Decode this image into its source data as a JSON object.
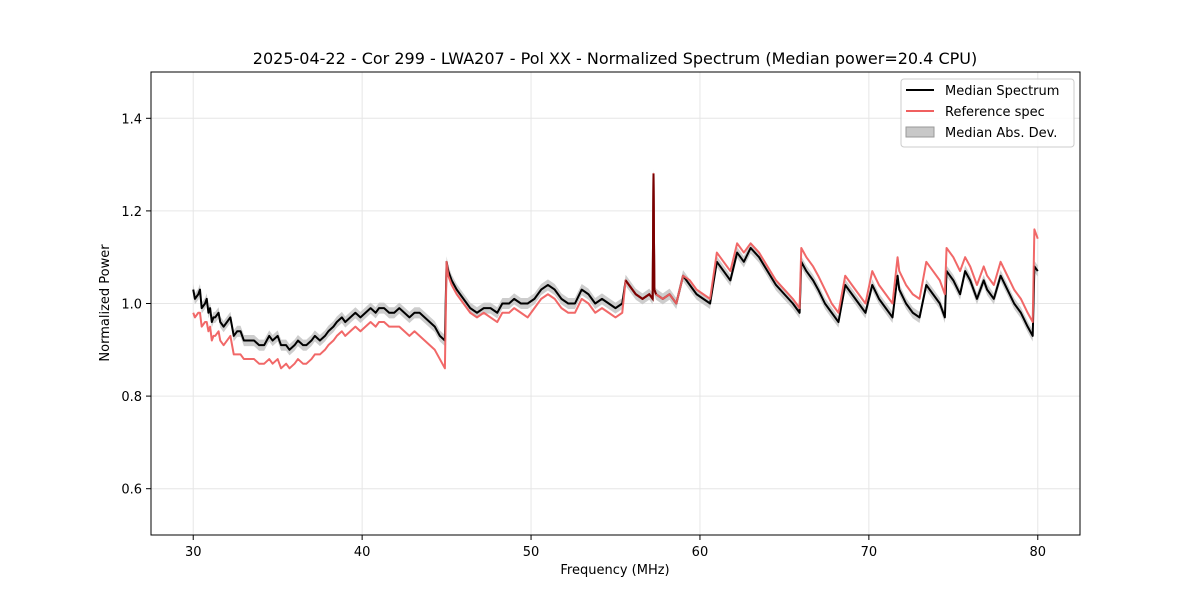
{
  "chart_data": {
    "type": "line",
    "title": "2025-04-22 - Cor 299 - LWA207 - Pol XX - Normalized Spectrum (Median power=20.4 CPU)",
    "xlabel": "Frequency (MHz)",
    "ylabel": "Normalized Power",
    "xlim": [
      27.5,
      82.5
    ],
    "ylim": [
      0.5,
      1.5
    ],
    "xticks": [
      30,
      40,
      50,
      60,
      70,
      80
    ],
    "yticks": [
      0.6,
      0.8,
      1.0,
      1.2,
      1.4
    ],
    "xtick_labels": [
      "30",
      "40",
      "50",
      "60",
      "70",
      "80"
    ],
    "ytick_labels": [
      "0.6",
      "0.8",
      "1.0",
      "1.2",
      "1.4"
    ],
    "grid": true,
    "legend_position": "top-right",
    "colors": {
      "median": "#000000",
      "reference": "#f06060",
      "mad": "#c8c8c8",
      "overlap": "#7a0000"
    },
    "legend": [
      "Median Spectrum",
      "Reference spec",
      "Median Abs. Dev."
    ],
    "series": [
      {
        "name": "Median Spectrum",
        "x": [
          30.0,
          30.1,
          30.3,
          30.4,
          30.5,
          30.7,
          30.8,
          30.9,
          31.0,
          31.1,
          31.2,
          31.3,
          31.5,
          31.6,
          31.8,
          32.0,
          32.2,
          32.4,
          32.6,
          32.8,
          33.0,
          33.3,
          33.6,
          33.9,
          34.2,
          34.5,
          34.7,
          35.0,
          35.2,
          35.5,
          35.7,
          36.0,
          36.2,
          36.5,
          36.7,
          37.0,
          37.2,
          37.5,
          37.8,
          38.0,
          38.3,
          38.5,
          38.8,
          39.0,
          39.3,
          39.6,
          39.9,
          40.2,
          40.5,
          40.8,
          41.0,
          41.3,
          41.6,
          41.9,
          42.2,
          42.5,
          42.8,
          43.1,
          43.4,
          43.7,
          44.0,
          44.3,
          44.6,
          44.9,
          45.0,
          45.1,
          45.3,
          45.6,
          46.0,
          46.4,
          46.8,
          47.2,
          47.6,
          48.0,
          48.3,
          48.7,
          49.0,
          49.4,
          49.8,
          50.2,
          50.6,
          51.0,
          51.4,
          51.8,
          52.2,
          52.6,
          53.0,
          53.4,
          53.8,
          54.2,
          54.6,
          55.0,
          55.4,
          55.6,
          55.8,
          56.2,
          56.6,
          57.0,
          57.2,
          57.25,
          57.3,
          57.4,
          57.8,
          58.2,
          58.6,
          59.0,
          59.4,
          59.8,
          60.2,
          60.6,
          61.0,
          61.4,
          61.8,
          62.2,
          62.6,
          63.0,
          63.5,
          64.0,
          64.5,
          65.0,
          65.5,
          65.9,
          66.0,
          66.3,
          66.7,
          67.0,
          67.4,
          67.8,
          68.2,
          68.6,
          69.0,
          69.4,
          69.8,
          70.2,
          70.6,
          71.0,
          71.4,
          71.7,
          71.8,
          72.2,
          72.6,
          73.0,
          73.4,
          73.8,
          74.2,
          74.5,
          74.6,
          75.0,
          75.4,
          75.7,
          76.0,
          76.4,
          76.8,
          77.0,
          77.4,
          77.8,
          78.2,
          78.6,
          79.0,
          79.4,
          79.7,
          79.8,
          80.0
        ],
        "values": [
          1.03,
          1.01,
          1.02,
          1.03,
          0.99,
          1.0,
          1.01,
          0.98,
          0.99,
          0.96,
          0.97,
          0.97,
          0.98,
          0.96,
          0.95,
          0.96,
          0.97,
          0.93,
          0.94,
          0.94,
          0.92,
          0.92,
          0.92,
          0.91,
          0.91,
          0.93,
          0.92,
          0.93,
          0.91,
          0.91,
          0.9,
          0.91,
          0.92,
          0.91,
          0.91,
          0.92,
          0.93,
          0.92,
          0.93,
          0.94,
          0.95,
          0.96,
          0.97,
          0.96,
          0.97,
          0.98,
          0.97,
          0.98,
          0.99,
          0.98,
          0.99,
          0.99,
          0.98,
          0.98,
          0.99,
          0.98,
          0.97,
          0.98,
          0.98,
          0.97,
          0.96,
          0.95,
          0.93,
          0.92,
          1.09,
          1.07,
          1.05,
          1.03,
          1.01,
          0.99,
          0.98,
          0.99,
          0.99,
          0.98,
          1.0,
          1.0,
          1.01,
          1.0,
          1.0,
          1.01,
          1.03,
          1.04,
          1.03,
          1.01,
          1.0,
          1.0,
          1.03,
          1.02,
          1.0,
          1.01,
          1.0,
          0.99,
          1.0,
          1.05,
          1.04,
          1.02,
          1.01,
          1.02,
          1.01,
          1.28,
          1.03,
          1.02,
          1.01,
          1.02,
          1.0,
          1.06,
          1.04,
          1.02,
          1.01,
          1.0,
          1.09,
          1.07,
          1.05,
          1.11,
          1.09,
          1.12,
          1.1,
          1.07,
          1.04,
          1.02,
          1.0,
          0.98,
          1.09,
          1.07,
          1.05,
          1.03,
          1.0,
          0.98,
          0.96,
          1.04,
          1.02,
          1.0,
          0.98,
          1.04,
          1.01,
          0.99,
          0.97,
          1.06,
          1.03,
          1.0,
          0.98,
          0.97,
          1.04,
          1.02,
          1.0,
          0.97,
          1.07,
          1.05,
          1.02,
          1.07,
          1.05,
          1.01,
          1.05,
          1.03,
          1.01,
          1.06,
          1.03,
          1.0,
          0.98,
          0.95,
          0.93,
          1.08,
          1.07
        ]
      },
      {
        "name": "Reference spec",
        "x": [
          30.0,
          30.1,
          30.3,
          30.4,
          30.5,
          30.7,
          30.8,
          30.9,
          31.0,
          31.1,
          31.2,
          31.3,
          31.5,
          31.6,
          31.8,
          32.0,
          32.2,
          32.4,
          32.6,
          32.8,
          33.0,
          33.3,
          33.6,
          33.9,
          34.2,
          34.5,
          34.7,
          35.0,
          35.2,
          35.5,
          35.7,
          36.0,
          36.2,
          36.5,
          36.7,
          37.0,
          37.2,
          37.5,
          37.8,
          38.0,
          38.3,
          38.5,
          38.8,
          39.0,
          39.3,
          39.6,
          39.9,
          40.2,
          40.5,
          40.8,
          41.0,
          41.3,
          41.6,
          41.9,
          42.2,
          42.5,
          42.8,
          43.1,
          43.4,
          43.7,
          44.0,
          44.3,
          44.6,
          44.9,
          45.0,
          45.1,
          45.3,
          45.6,
          46.0,
          46.4,
          46.8,
          47.2,
          47.6,
          48.0,
          48.3,
          48.7,
          49.0,
          49.4,
          49.8,
          50.2,
          50.6,
          51.0,
          51.4,
          51.8,
          52.2,
          52.6,
          53.0,
          53.4,
          53.8,
          54.2,
          54.6,
          55.0,
          55.4,
          55.6,
          55.8,
          56.2,
          56.6,
          57.0,
          57.2,
          57.25,
          57.3,
          57.4,
          57.8,
          58.2,
          58.6,
          59.0,
          59.4,
          59.8,
          60.2,
          60.6,
          61.0,
          61.4,
          61.8,
          62.2,
          62.6,
          63.0,
          63.5,
          64.0,
          64.5,
          65.0,
          65.5,
          65.9,
          66.0,
          66.3,
          66.7,
          67.0,
          67.4,
          67.8,
          68.2,
          68.6,
          69.0,
          69.4,
          69.8,
          70.2,
          70.6,
          71.0,
          71.4,
          71.7,
          71.8,
          72.2,
          72.6,
          73.0,
          73.4,
          73.8,
          74.2,
          74.5,
          74.6,
          75.0,
          75.4,
          75.7,
          76.0,
          76.4,
          76.8,
          77.0,
          77.4,
          77.8,
          78.2,
          78.6,
          79.0,
          79.4,
          79.7,
          79.8,
          80.0
        ],
        "values": [
          0.98,
          0.97,
          0.98,
          0.98,
          0.95,
          0.96,
          0.96,
          0.94,
          0.95,
          0.92,
          0.93,
          0.93,
          0.94,
          0.92,
          0.91,
          0.92,
          0.93,
          0.89,
          0.89,
          0.89,
          0.88,
          0.88,
          0.88,
          0.87,
          0.87,
          0.88,
          0.87,
          0.88,
          0.86,
          0.87,
          0.86,
          0.87,
          0.88,
          0.87,
          0.87,
          0.88,
          0.89,
          0.89,
          0.9,
          0.91,
          0.92,
          0.93,
          0.94,
          0.93,
          0.94,
          0.95,
          0.94,
          0.95,
          0.96,
          0.95,
          0.96,
          0.96,
          0.95,
          0.95,
          0.95,
          0.94,
          0.93,
          0.94,
          0.93,
          0.92,
          0.91,
          0.9,
          0.88,
          0.86,
          1.09,
          1.06,
          1.04,
          1.02,
          1.0,
          0.98,
          0.97,
          0.98,
          0.97,
          0.96,
          0.98,
          0.98,
          0.99,
          0.98,
          0.97,
          0.99,
          1.01,
          1.02,
          1.01,
          0.99,
          0.98,
          0.98,
          1.01,
          1.0,
          0.98,
          0.99,
          0.98,
          0.97,
          0.98,
          1.05,
          1.04,
          1.02,
          1.01,
          1.02,
          1.01,
          1.28,
          1.03,
          1.02,
          1.01,
          1.02,
          1.0,
          1.06,
          1.05,
          1.03,
          1.02,
          1.01,
          1.11,
          1.09,
          1.07,
          1.13,
          1.11,
          1.13,
          1.11,
          1.08,
          1.05,
          1.03,
          1.01,
          0.99,
          1.12,
          1.1,
          1.08,
          1.06,
          1.03,
          1.0,
          0.98,
          1.06,
          1.04,
          1.02,
          1.0,
          1.07,
          1.04,
          1.02,
          1.0,
          1.1,
          1.07,
          1.04,
          1.02,
          1.01,
          1.09,
          1.07,
          1.05,
          1.02,
          1.12,
          1.1,
          1.07,
          1.1,
          1.08,
          1.04,
          1.08,
          1.06,
          1.04,
          1.09,
          1.06,
          1.03,
          1.01,
          0.98,
          0.96,
          1.16,
          1.14
        ]
      }
    ],
    "mad_band": {
      "name": "Median Abs. Dev.",
      "half_width": 0.012
    }
  }
}
